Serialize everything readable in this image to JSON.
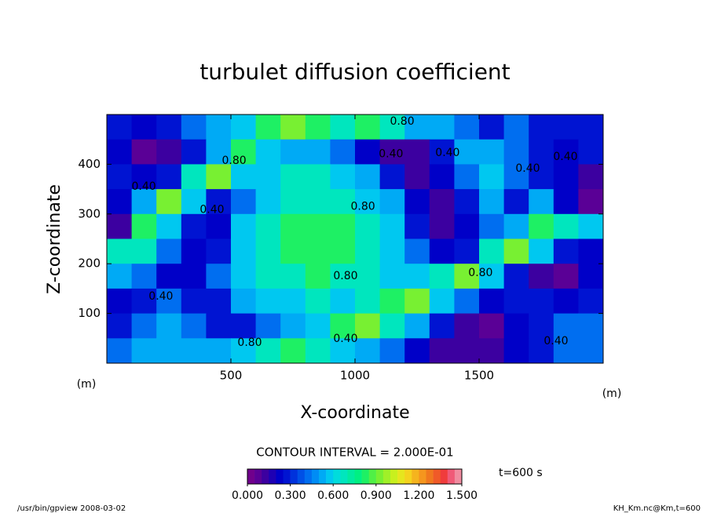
{
  "chart_data": {
    "type": "heatmap",
    "title": "turbulet diffusion coefficient",
    "x_label": "X-coordinate",
    "y_label": "Z-coordinate",
    "x_unit": "(m)",
    "y_unit": "(m)",
    "xlim": [
      0,
      2000
    ],
    "ylim": [
      0,
      500
    ],
    "xticks": [
      500,
      1000,
      1500
    ],
    "yticks": [
      100,
      200,
      300,
      400
    ],
    "x": [
      50,
      150,
      250,
      350,
      450,
      550,
      650,
      750,
      850,
      950,
      1050,
      1150,
      1250,
      1350,
      1450,
      1550,
      1650,
      1750,
      1850,
      1950
    ],
    "y": [
      475,
      425,
      375,
      325,
      275,
      225,
      175,
      125,
      75,
      25
    ],
    "z": [
      [
        0.3,
        0.2,
        0.25,
        0.4,
        0.5,
        0.6,
        0.8,
        0.9,
        0.8,
        0.7,
        0.8,
        0.7,
        0.5,
        0.5,
        0.4,
        0.3,
        0.4,
        0.3,
        0.3,
        0.25
      ],
      [
        0.2,
        0.05,
        0.1,
        0.3,
        0.5,
        0.8,
        0.6,
        0.5,
        0.5,
        0.4,
        0.2,
        0.1,
        0.1,
        0.3,
        0.5,
        0.5,
        0.4,
        0.3,
        0.2,
        0.3
      ],
      [
        0.3,
        0.2,
        0.3,
        0.7,
        0.9,
        0.6,
        0.6,
        0.7,
        0.7,
        0.6,
        0.5,
        0.3,
        0.1,
        0.2,
        0.4,
        0.6,
        0.4,
        0.3,
        0.2,
        0.1
      ],
      [
        0.2,
        0.5,
        0.9,
        0.6,
        0.3,
        0.4,
        0.6,
        0.7,
        0.7,
        0.7,
        0.6,
        0.5,
        0.2,
        0.1,
        0.3,
        0.5,
        0.3,
        0.5,
        0.2,
        0.05
      ],
      [
        0.1,
        0.8,
        0.6,
        0.3,
        0.2,
        0.6,
        0.7,
        0.8,
        0.8,
        0.8,
        0.7,
        0.6,
        0.3,
        0.1,
        0.2,
        0.4,
        0.5,
        0.8,
        0.7,
        0.6
      ],
      [
        0.7,
        0.7,
        0.4,
        0.2,
        0.3,
        0.6,
        0.7,
        0.8,
        0.8,
        0.8,
        0.7,
        0.6,
        0.4,
        0.2,
        0.3,
        0.7,
        0.9,
        0.6,
        0.3,
        0.2
      ],
      [
        0.5,
        0.4,
        0.2,
        0.2,
        0.4,
        0.6,
        0.7,
        0.7,
        0.8,
        0.7,
        0.7,
        0.6,
        0.6,
        0.7,
        0.9,
        0.6,
        0.3,
        0.1,
        0.05,
        0.2
      ],
      [
        0.2,
        0.3,
        0.4,
        0.3,
        0.3,
        0.5,
        0.6,
        0.6,
        0.7,
        0.6,
        0.7,
        0.8,
        0.9,
        0.6,
        0.4,
        0.2,
        0.3,
        0.3,
        0.2,
        0.3
      ],
      [
        0.3,
        0.4,
        0.5,
        0.4,
        0.3,
        0.3,
        0.4,
        0.5,
        0.6,
        0.8,
        0.9,
        0.7,
        0.5,
        0.3,
        0.1,
        0.05,
        0.2,
        0.3,
        0.4,
        0.4
      ],
      [
        0.4,
        0.5,
        0.5,
        0.5,
        0.5,
        0.6,
        0.7,
        0.8,
        0.7,
        0.6,
        0.5,
        0.4,
        0.2,
        0.1,
        0.1,
        0.1,
        0.2,
        0.3,
        0.4,
        0.4
      ]
    ],
    "clim": [
      0,
      1.5
    ],
    "colormap": [
      "#70008c",
      "#5a0096",
      "#3c00a0",
      "#1e00b4",
      "#0000c8",
      "#0014d2",
      "#0032dc",
      "#0050e6",
      "#006ef0",
      "#008cf5",
      "#00aaf5",
      "#00c8f0",
      "#00dcdc",
      "#00e6be",
      "#00eba0",
      "#00f082",
      "#1ef064",
      "#50f046",
      "#78f032",
      "#a0f028",
      "#c8f01e",
      "#e6e61e",
      "#f5d21e",
      "#f5b41e",
      "#f5961e",
      "#f0781e",
      "#f05a28",
      "#f03c3c",
      "#f05a78",
      "#f08ca0"
    ],
    "colorbar_ticks": [
      {
        "value": 0,
        "label": "0.000"
      },
      {
        "value": 0.3,
        "label": "0.300"
      },
      {
        "value": 0.6,
        "label": "0.600"
      },
      {
        "value": 0.9,
        "label": "0.900"
      },
      {
        "value": 1.2,
        "label": "1.200"
      },
      {
        "value": 1.5,
        "label": "1.500"
      }
    ],
    "contour_labels": [
      {
        "text": "0.80",
        "x": 1190,
        "y": 486
      },
      {
        "text": "0.40",
        "x": 1145,
        "y": 420
      },
      {
        "text": "0.40",
        "x": 1373,
        "y": 423
      },
      {
        "text": "0.80",
        "x": 513,
        "y": 407
      },
      {
        "text": "0.40",
        "x": 149,
        "y": 355
      },
      {
        "text": "0.40",
        "x": 424,
        "y": 308
      },
      {
        "text": "0.80",
        "x": 1032,
        "y": 315
      },
      {
        "text": "0.80",
        "x": 962,
        "y": 175
      },
      {
        "text": "0.80",
        "x": 1506,
        "y": 181
      },
      {
        "text": "0.40",
        "x": 218,
        "y": 134
      },
      {
        "text": "0.80",
        "x": 576,
        "y": 41
      },
      {
        "text": "0.40",
        "x": 962,
        "y": 49
      },
      {
        "text": "0.40",
        "x": 1810,
        "y": 44
      },
      {
        "text": "0.40",
        "x": 1848,
        "y": 415
      },
      {
        "text": "0.40",
        "x": 1696,
        "y": 391
      }
    ],
    "contour_interval": "CONTOUR INTERVAL = 2.000E-01",
    "time_label": "t=600 s",
    "footer_left": "/usr/bin/gpview  2008-03-02",
    "footer_right": "KH_Km.nc@Km,t=600"
  }
}
